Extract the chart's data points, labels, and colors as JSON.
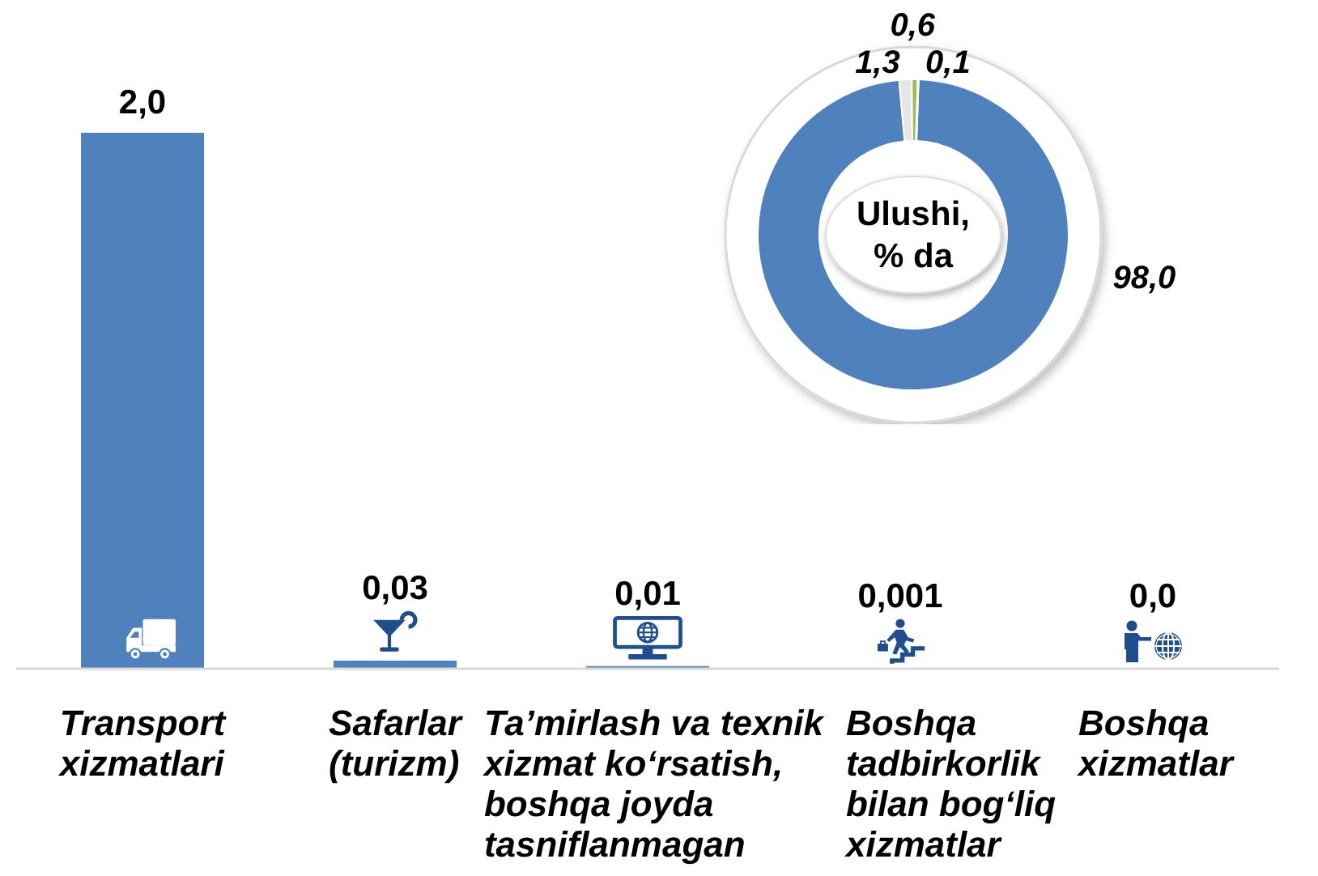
{
  "chart_data": [
    {
      "type": "bar",
      "categories": [
        "Transport\nxizmatlari",
        "Safarlar\n(turizm)",
        "Ta’mirlash va texnik\nxizmat ko‘rsatish,\nboshqa joyda\ntasniflanmagan",
        "Boshqa\ntadbirkorlik\nbilan bog‘liq\nxizmatlar",
        "Boshqa\nxizmatlar"
      ],
      "values": [
        2.0,
        0.03,
        0.01,
        0.001,
        0.0
      ],
      "color": "#4f81bd",
      "value_labels": [
        "2,0",
        "0,03",
        "0,01",
        "0,001",
        "0,0"
      ]
    },
    {
      "type": "donut",
      "title": "Ulushi,\n% da",
      "categories": [
        null,
        null,
        null,
        null
      ],
      "values": [
        98.0,
        1.3,
        0.6,
        0.1
      ],
      "colors": [
        "#4f81bd",
        "#e6e6e6",
        "#9bbb59",
        "#d9d9d9"
      ],
      "value_labels": [
        "98,0",
        "1,3",
        "0,6",
        "0,1"
      ]
    }
  ]
}
